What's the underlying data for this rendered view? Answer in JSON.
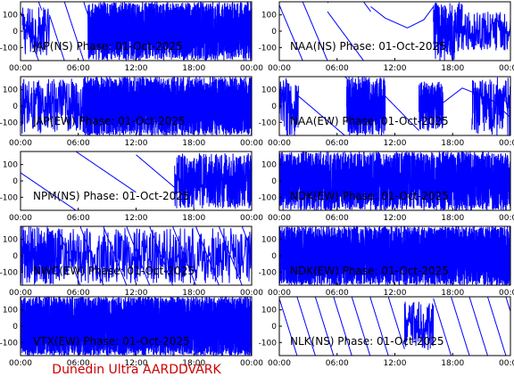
{
  "footer": "Dunedin Ultra AARDDVARK",
  "colors": {
    "trace": "#0000ff",
    "axes": "#000000",
    "footer": "#cc0000",
    "background": "#ffffff"
  },
  "chart_data": [
    {
      "type": "line",
      "title": "JAP(NS) Phase: 01-Oct-2025",
      "x_ticks": [
        "00:00",
        "06:00",
        "12:00",
        "18:00",
        "00:00"
      ],
      "y_ticks": [
        100,
        0,
        -100
      ],
      "ylim": [
        -180,
        180
      ],
      "xlim_hours": [
        0,
        24
      ],
      "pattern": "early-wrap-then-dense",
      "dense_from_hour": 7
    },
    {
      "type": "line",
      "title": "NAA(NS) Phase: 01-Oct-2025",
      "x_ticks": [
        "00:00",
        "06:00",
        "12:00",
        "18:00",
        "00:00"
      ],
      "y_ticks": [
        100,
        0,
        -100
      ],
      "ylim": [
        -180,
        180
      ],
      "xlim_hours": [
        0,
        24
      ],
      "pattern": "wraps-with-arc"
    },
    {
      "type": "line",
      "title": "JAP(EW) Phase: 01-Oct-2025",
      "x_ticks": [
        "00:00",
        "06:00",
        "12:00",
        "18:00",
        "00:00"
      ],
      "y_ticks": [
        100,
        0,
        -100
      ],
      "ylim": [
        -180,
        180
      ],
      "xlim_hours": [
        0,
        24
      ],
      "pattern": "early-noisy-then-dense",
      "dense_from_hour": 6.5
    },
    {
      "type": "line",
      "title": "NAA(EW) Phase: 01-Oct-2025",
      "x_ticks": [
        "00:00",
        "06:00",
        "12:00",
        "18:00",
        "00:00"
      ],
      "y_ticks": [
        100,
        0,
        -100
      ],
      "ylim": [
        -180,
        180
      ],
      "xlim_hours": [
        0,
        24
      ],
      "pattern": "mixed-dense-blocks"
    },
    {
      "type": "line",
      "title": "NPM(NS) Phase: 01-Oct-2025",
      "x_ticks": [
        "00:00",
        "06:00",
        "12:00",
        "18:00",
        "00:00"
      ],
      "y_ticks": [
        100,
        0,
        -100
      ],
      "ylim": [
        -180,
        180
      ],
      "xlim_hours": [
        0,
        24
      ],
      "pattern": "slow-drift-then-noisy"
    },
    {
      "type": "line",
      "title": "NDK(EW) Phase: 01-Oct-2025",
      "x_ticks": [
        "00:00",
        "06:00",
        "12:00",
        "18:00",
        "00:00"
      ],
      "y_ticks": [
        100,
        0,
        -100
      ],
      "ylim": [
        -180,
        180
      ],
      "xlim_hours": [
        0,
        24
      ],
      "pattern": "dense-noisy"
    },
    {
      "type": "line",
      "title": "NWC(EW) Phase: 01-Oct-2025",
      "x_ticks": [
        "00:00",
        "06:00",
        "12:00",
        "18:00",
        "00:00"
      ],
      "y_ticks": [
        100,
        0,
        -100
      ],
      "ylim": [
        -180,
        180
      ],
      "xlim_hours": [
        0,
        24
      ],
      "pattern": "noisy-then-sawtooth"
    },
    {
      "type": "line",
      "title": "NDK(EW) Phase: 01-Oct-2025",
      "x_ticks": [
        "00:00",
        "06:00",
        "12:00",
        "18:00",
        "00:00"
      ],
      "y_ticks": [
        100,
        0,
        -100
      ],
      "ylim": [
        -180,
        180
      ],
      "xlim_hours": [
        0,
        24
      ],
      "pattern": "dense-solid"
    },
    {
      "type": "line",
      "title": "VTX(EW) Phase: 01-Oct-2025",
      "x_ticks": [
        "00:00",
        "06:00",
        "12:00",
        "18:00",
        "00:00"
      ],
      "y_ticks": [
        100,
        0,
        -100
      ],
      "ylim": [
        -180,
        180
      ],
      "xlim_hours": [
        0,
        24
      ],
      "pattern": "dense-solid"
    },
    {
      "type": "line",
      "title": "NLK(NS) Phase: 01-Oct-2025",
      "x_ticks": [
        "00:00",
        "06:00",
        "12:00",
        "18:00",
        "00:00"
      ],
      "y_ticks": [
        100,
        0,
        -100
      ],
      "ylim": [
        -180,
        180
      ],
      "xlim_hours": [
        0,
        24
      ],
      "pattern": "regular-sawtooth"
    }
  ]
}
